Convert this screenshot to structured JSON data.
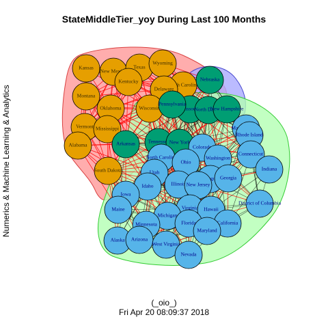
{
  "title": "StateMiddleTier_yoy During Last 100 Months",
  "ylabel": "Numerics & Machine Learning & Analytics",
  "footer_top": "(_oio_)",
  "footer_bottom": "Fri Apr 20 08:09:37 2018",
  "colors": {
    "orange": "#E69F00",
    "green": "#009E73",
    "blue": "#56B4E9",
    "group_red_fill": "#FF9999",
    "group_red_stroke": "#D94040",
    "group_blue_fill": "#AAAAFF",
    "group_blue_stroke": "#4444CC",
    "group_green_fill": "#B3FFB3",
    "group_green_stroke": "#33CC33",
    "edge_red": "#FF0000",
    "edge_dark": "#000000",
    "label_text": "#00008B"
  },
  "nodes": [
    {
      "label": "Kansas",
      "group": "orange"
    },
    {
      "label": "New Mexico",
      "group": "orange"
    },
    {
      "label": "Texas",
      "group": "orange"
    },
    {
      "label": "Wyoming",
      "group": "orange"
    },
    {
      "label": "Kentucky",
      "group": "orange"
    },
    {
      "label": "South Carolina",
      "group": "orange"
    },
    {
      "label": "Delaware",
      "group": "orange"
    },
    {
      "label": "Nebraska",
      "group": "green"
    },
    {
      "label": "Montana",
      "group": "orange"
    },
    {
      "label": "Oklahoma",
      "group": "orange"
    },
    {
      "label": "Wisconsin",
      "group": "orange"
    },
    {
      "label": "Missouri",
      "group": "green"
    },
    {
      "label": "North Dakota",
      "group": "green"
    },
    {
      "label": "New Hampshire",
      "group": "green"
    },
    {
      "label": "Pennsylvania",
      "group": "green"
    },
    {
      "label": "Vermont",
      "group": "orange"
    },
    {
      "label": "Mississippi",
      "group": "orange"
    },
    {
      "label": "Alabama",
      "group": "orange"
    },
    {
      "label": "Arkansas",
      "group": "green"
    },
    {
      "label": "Tennessee",
      "group": "green"
    },
    {
      "label": "New York",
      "group": "green"
    },
    {
      "label": "Massachusetts",
      "group": "blue"
    },
    {
      "label": "Rhode Island",
      "group": "blue"
    },
    {
      "label": "Colorado",
      "group": "blue"
    },
    {
      "label": "Washington",
      "group": "blue"
    },
    {
      "label": "Connecticut",
      "group": "blue"
    },
    {
      "label": "North Carolina",
      "group": "blue"
    },
    {
      "label": "Ohio",
      "group": "blue"
    },
    {
      "label": "Indiana",
      "group": "blue"
    },
    {
      "label": "South Dakota",
      "group": "orange"
    },
    {
      "label": "Utah",
      "group": "blue"
    },
    {
      "label": "Oregon",
      "group": "blue"
    },
    {
      "label": "Georgia",
      "group": "blue"
    },
    {
      "label": "Idaho",
      "group": "blue"
    },
    {
      "label": "Illinois",
      "group": "blue"
    },
    {
      "label": "New Jersey",
      "group": "blue"
    },
    {
      "label": "Iowa",
      "group": "blue"
    },
    {
      "label": "District of Columbia",
      "group": "blue"
    },
    {
      "label": "Maine",
      "group": "blue"
    },
    {
      "label": "Virginia",
      "group": "blue"
    },
    {
      "label": "Hawaii",
      "group": "blue"
    },
    {
      "label": "Michigan",
      "group": "blue"
    },
    {
      "label": "Minnesota",
      "group": "blue"
    },
    {
      "label": "California",
      "group": "blue"
    },
    {
      "label": "Florida",
      "group": "blue"
    },
    {
      "label": "Maryland",
      "group": "blue"
    },
    {
      "label": "Alaska",
      "group": "blue"
    },
    {
      "label": "Arizona",
      "group": "blue"
    },
    {
      "label": "West Virginia",
      "group": "blue"
    },
    {
      "label": "Nevada",
      "group": "blue"
    }
  ]
}
